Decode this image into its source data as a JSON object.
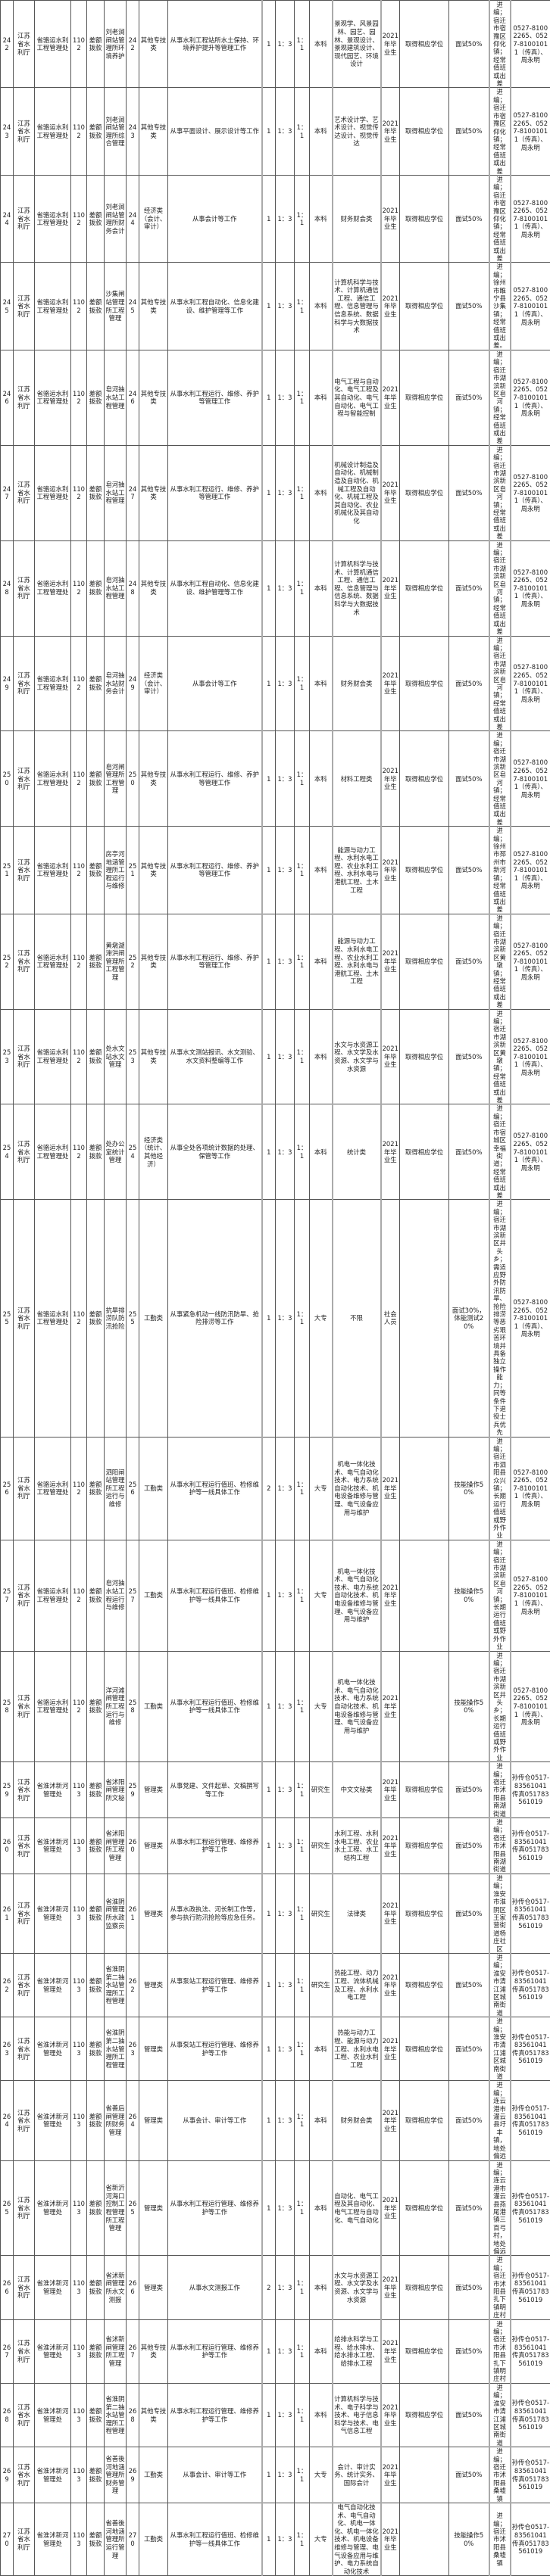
{
  "columns": [
    "no",
    "dept",
    "unit",
    "unit_code",
    "funding",
    "post_name",
    "post_code",
    "post_category",
    "description",
    "count",
    "exam_ratio",
    "hire_ratio",
    "education",
    "major",
    "target",
    "degree",
    "assessment",
    "remark",
    "contact"
  ],
  "rows": [
    [
      "242",
      "江苏省水利厅",
      "省骆运水利工程管理处",
      "1102",
      "差额拨款",
      "刘老涧闸站管理所环境养护",
      "242",
      "其他专技类",
      "从事水利工程站所水土保持、环境养护提升等管理工作",
      "1",
      "1：3",
      "1：1",
      "本科",
      "景观学、风景园林、园艺、园林、景观设计、景观建筑设计、现代园艺、环境设计",
      "2021年毕业生",
      "取得相应学位",
      "面试50%",
      "进编；宿迁市宿豫区仰化镇；经常值班或出差",
      "0527-81002265、0527-81001011（传真）、周永明"
    ],
    [
      "243",
      "江苏省水利厅",
      "省骆运水利工程管理处",
      "1102",
      "差额拨款",
      "刘老涧闸站管理所综合管理",
      "243",
      "其他专技类",
      "从事平面设计、展示设计等工作",
      "1",
      "1：3",
      "1：1",
      "本科",
      "艺术设计学、艺术设计、视觉传达设计、视觉传达",
      "2021年毕业生",
      "取得相应学位",
      "面试50%",
      "进编；宿迁市宿豫区仰化镇；经常值班或出差",
      "0527-81002265、0527-81001011（传真）、周永明"
    ],
    [
      "244",
      "江苏省水利厅",
      "省骆运水利工程管理处",
      "1102",
      "差额拨款",
      "刘老涧闸站管理所财务会计",
      "244",
      "经济类（会计、审计）",
      "从事会计等工作",
      "1",
      "1：3",
      "1：1",
      "本科",
      "财务财会类",
      "2021年毕业生",
      "取得相应学位",
      "面试50%",
      "进编；宿迁市宿豫区仰化镇；经常值班或出差",
      "0527-81002265、0527-81001011（传真）、周永明"
    ],
    [
      "245",
      "江苏省水利厅",
      "省骆运水利工程管理处",
      "1102",
      "差额拨款",
      "沙集闸站管理所工程管理",
      "245",
      "其他专技类",
      "从事水利工程自动化、信息化建设、维护管理等工作",
      "1",
      "1：3",
      "1：1",
      "本科",
      "计算机科学与技术、计算机通信工程、通信工程、信息管理与信息系统、数据科学与大数据技术",
      "2021年毕业生",
      "取得相应学位",
      "面试50%",
      "进编；徐州市睢宁县沙集镇；经常值班或出差。",
      "0527-81002265、0527-81001011（传真）、周永明"
    ],
    [
      "246",
      "江苏省水利厅",
      "省骆运水利工程管理处",
      "1102",
      "差额拨款",
      "皂河抽水站工程管理",
      "246",
      "其他专技类",
      "从事水利工程运行、维修、养护等管理工作",
      "1",
      "1：3",
      "1：1",
      "本科",
      "电气工程与自动化、电气工程及其自动化、电气自动化、电气工程与智能控制",
      "2021年毕业生",
      "取得相应学位",
      "面试50%",
      "进编；宿迁市湖滨新区皂河镇；经常值班或出差",
      "0527-81002265、0527-81001011（传真）、周永明"
    ],
    [
      "247",
      "江苏省水利厅",
      "省骆运水利工程管理处",
      "1102",
      "差额拨款",
      "皂河抽水站工程管理",
      "247",
      "其他专技类",
      "从事水利工程运行、维修、养护等管理工作",
      "1",
      "1：3",
      "1：1",
      "本科",
      "机械设计制造及自动化、机械制造及自动化、机械工程及自动化、机械工程及其自动化、农业机械化及其自动化",
      "2021年毕业生",
      "取得相应学位",
      "面试50%",
      "进编；宿迁市湖滨新区皂河镇；经常值班或出差",
      "0527-81002265、0527-81001011（传真）、周永明"
    ],
    [
      "248",
      "江苏省水利厅",
      "省骆运水利工程管理处",
      "1102",
      "差额拨款",
      "皂河抽水站工程管理",
      "248",
      "其他专技类",
      "从事水利工程自动化、信息化建设、维护管理等工作",
      "1",
      "1：3",
      "1：1",
      "本科",
      "计算机科学与技术、计算机通信工程、通信工程、信息管理与信息系统、数据科学与大数据技术",
      "2021年毕业生",
      "取得相应学位",
      "面试50%",
      "进编；宿迁市湖滨新区皂河镇；经常值班或出差",
      "0527-81002265、0527-81001011（传真）、周永明"
    ],
    [
      "249",
      "江苏省水利厅",
      "省骆运水利工程管理处",
      "1102",
      "差额拨款",
      "皂河抽水站财务会计",
      "249",
      "经济类（会计、审计）",
      "从事会计等工作",
      "1",
      "1：3",
      "1：1",
      "本科",
      "财务财会类",
      "2021年毕业生",
      "取得相应学位",
      "面试50%",
      "进编；宿迁市湖滨新区皂河镇；经常值班或出差",
      "0527-81002265、0527-81001011（传真）、周永明"
    ],
    [
      "250",
      "江苏省水利厅",
      "省骆运水利工程管理处",
      "1102",
      "差额拨款",
      "皂河闸管理所工程管理",
      "250",
      "其他专技类",
      "从事水利工程运行、维修、养护等管理工作",
      "1",
      "1：3",
      "1：1",
      "本科",
      "材料工程类",
      "2021年毕业生",
      "取得相应学位",
      "面试50%",
      "进编；宿迁市湖滨新区皂河镇；经常值班或出差",
      "0527-81002265、0527-81001011（传真）、周永明"
    ],
    [
      "251",
      "江苏省水利厅",
      "省骆运水利工程管理处",
      "1102",
      "差额拨款",
      "房亭河地涵管理所工程运行与维修",
      "251",
      "其他专技类",
      "从事水利工程运行、维修、养护等管理工作",
      "1",
      "1：3",
      "1：1",
      "本科",
      "能源与动力工程、水利水电工程、农业水利工程、水利水电与港航工程、土木工程",
      "2021年毕业生",
      "取得相应学位",
      "面试50%",
      "进编；徐州市邳州市新河镇；经常值班或出差",
      "0527-81002265、0527-81001011（传真）、周永明"
    ],
    [
      "252",
      "江苏省水利厅",
      "省骆运水利工程管理处",
      "1102",
      "差额拨款",
      "黄墩湖滞洪闸管理所工程管理",
      "252",
      "其他专技类",
      "从事水利工程运行、维修、养护等管理工作",
      "1",
      "1：3",
      "1：1",
      "本科",
      "能源与动力工程、水利水电工程、农业水利工程、水利水电与港航工程、土木工程",
      "2021年毕业生",
      "取得相应学位",
      "面试50%",
      "进编；宿迁市湖滨新区黄墩镇；经常值班或出差",
      "0527-81002265、0527-81001011（传真）、周永明"
    ],
    [
      "253",
      "江苏省水利厅",
      "省骆运水利工程管理处",
      "1102",
      "差额拨款",
      "处水文站水文管理",
      "253",
      "其他专技类",
      "从事水文测站报讯、水文测验、水文资料整编等工作",
      "1",
      "1：3",
      "1：1",
      "本科",
      "水文与水资源工程、水文学及水资源、水文学与水资源",
      "2021年毕业生",
      "取得相应学位",
      "面试50%",
      "进编；宿迁市湖滨新区黄墩镇；经常值班或出差",
      "0527-81002265、0527-81001011（传真）、周永明"
    ],
    [
      "254",
      "江苏省水利厅",
      "省骆运水利工程管理处",
      "1102",
      "差额拨款",
      "处办公室统计管理",
      "254",
      "经济类（统计、其他经济）",
      "从事全处各项统计数据的处理、保管等工作",
      "1",
      "1：3",
      "1：1",
      "本科",
      "统计类",
      "2021年毕业生",
      "取得相应学位",
      "面试50%",
      "进编；宿迁市宿城区幸福街道；经常值班或出差",
      "0527-81002265、0527-81001011（传真）、周永明"
    ],
    [
      "255",
      "江苏省水利厅",
      "省骆运水利工程管理处",
      "1102",
      "差额拨款",
      "抗旱排涝队防汛抢险",
      "255",
      "工勤类",
      "从事紧急机动一线防汛防旱、抢险排涝等工作",
      "1",
      "1：3",
      "1：1",
      "大专",
      "不限",
      "社会人员",
      "",
      "面试30%，体能测试20%",
      "进编；宿迁市湖滨新区井头乡；需适应野外防汛防旱、抢险排涝等恶劣艰苦环境并具备独立操作能力；同等条件下退役士兵优先",
      "0527-81002265、0527-81001011（传真）、周永明"
    ],
    [
      "256",
      "江苏省水利厅",
      "省骆运水利工程管理处",
      "1102",
      "差额拨款",
      "泗阳闸站管理所工程运行与维修",
      "256",
      "工勤类",
      "从事水利工程运行值班、检修维护等一线具体工作",
      "2",
      "1：3",
      "1：1",
      "大专",
      "机电一体化技术、电气自动化技术、电力系统自动化技术、机电设备维修与管理、电气设备应用与维护",
      "2021年毕业生",
      "",
      "技能操作50%",
      "进编；宿迁市泗阳县众兴镇；长期运行值班或野外作业",
      "0527-81002265、0527-81001011（传真）、周永明"
    ],
    [
      "257",
      "江苏省水利厅",
      "省骆运水利工程管理处",
      "1102",
      "差额拨款",
      "皂河抽水站工程运行与维修",
      "257",
      "工勤类",
      "从事水利工程运行值班、检修维护等一线具体工作",
      "1",
      "1：3",
      "1：1",
      "大专",
      "机电一体化技术、电气自动化技术、电力系统自动化技术、机电设备维修与管理、电气设备应用与维护",
      "2021年毕业生",
      "",
      "技能操作50%",
      "进编；宿迁市湖滨新区皂河镇；长期运行值班或野外作业",
      "0527-81002265、0527-81001011（传真）、周永明"
    ],
    [
      "258",
      "江苏省水利厅",
      "省骆运水利工程管理处",
      "1102",
      "差额拨款",
      "洋河滩闸管理所工程运行与维修",
      "258",
      "工勤类",
      "从事水利工程运行值班、检修维护等一线具体工作",
      "1",
      "1：3",
      "1：1",
      "大专",
      "机电一体化技术、电气自动化技术、电力系统自动化技术、机电设备维修与管理、电气设备应用与维护",
      "2021年毕业生",
      "",
      "技能操作50%",
      "进编；宿迁市湖滨新区井头乡；长期运行值班或野外作业",
      "0527-81002265、0527-81001011（传真）、周永明"
    ],
    [
      "259",
      "江苏省水利厅",
      "省淮沭新河管理处",
      "1103",
      "差额拨款",
      "省沭阳闸管理所文秘",
      "259",
      "管理类",
      "从事党建、文件起草、文稿撰写等工作",
      "1",
      "1：3",
      "1：1",
      "研究生",
      "中文文秘类",
      "2021年毕业生",
      "取得相应学位",
      "面试50%",
      "进编；宿迁市沭阳县南湖街道",
      "孙传仓0517-83561041传真051783561019"
    ],
    [
      "260",
      "江苏省水利厅",
      "省淮沭新河管理处",
      "1103",
      "差额拨款",
      "省沭阳闸管理所工程管理",
      "260",
      "管理类",
      "从事水利工程运行管理、维修养护等工作",
      "1",
      "1：3",
      "1：1",
      "研究生",
      "水利工程、水利水电工程、农业水土工程、水工结构工程",
      "2021年毕业生",
      "取得相应学位",
      "面试50%",
      "进编；宿迁市沭阳县南湖街道",
      "孙传仓0517-83561041传真051783561019"
    ],
    [
      "261",
      "江苏省水利厅",
      "省淮沭新河管理处",
      "1103",
      "差额拨款",
      "省淮阴闸管理所水政监察员",
      "261",
      "管理类",
      "从事水政执法、河长制工作等，参与执行防汛抢险等应急任务。",
      "1",
      "1：3",
      "1：1",
      "研究生",
      "法律类",
      "2021年毕业生",
      "取得相应学位",
      "面试50%",
      "进编；淮安市淮阴区王家营街道杨庄社区",
      "孙传仓0517-83561041传真051783561019"
    ],
    [
      "262",
      "江苏省水利厅",
      "省淮沭新河管理处",
      "1103",
      "差额拨款",
      "省淮阴第二抽水站管理所工程管理",
      "262",
      "管理类",
      "从事泵站工程运行管理、维修养护等工作",
      "1",
      "1：3",
      "1：1",
      "研究生",
      "热能工程、动力工程、流体机械及工程、水利水电工程",
      "2021年毕业生",
      "取得相应学位",
      "面试50%",
      "进编；淮安市清江浦区城南街道",
      "孙传仓0517-83561041传真051783561019"
    ],
    [
      "263",
      "江苏省水利厅",
      "省淮沭新河管理处",
      "1103",
      "差额拨款",
      "省淮阴第二抽水站管理所工程管理",
      "263",
      "管理类",
      "从事泵站工程运行管理、维修养护等工作",
      "1",
      "1：3",
      "1：1",
      "本科",
      "热能与动力工程、能源与动力工程、水利水电工程、农业水利工程",
      "2021年毕业生",
      "取得相应学位",
      "面试50%",
      "进编；淮安市清江浦区城南街道",
      "孙传仓0517-83561041传真051783561019"
    ],
    [
      "264",
      "江苏省水利厅",
      "省淮沭新河管理处",
      "1103",
      "差额拨款",
      "省善后闸管理所财务管理",
      "264",
      "管理类",
      "从事会计、审计等工作",
      "1",
      "1：3",
      "1：1",
      "本科",
      "财务财会类",
      "2021年毕业生",
      "取得相应学位",
      "面试50%",
      "进编；连云港市灌云县圩丰镇，地处偏远",
      "孙传仓0517-83561041传真051783561019"
    ],
    [
      "265",
      "江苏省水利厅",
      "省淮沭新河管理处",
      "1103",
      "差额拨款",
      "省新沂河海口控制工程管理所工程管理",
      "265",
      "管理类",
      "从事水利工程运行管理、维修养护等工作",
      "1",
      "1：3",
      "1：1",
      "本科",
      "自动化、电气工程及其自动化、电气工程与自动化、电气自动化",
      "2021年毕业生",
      "取得相应学位",
      "面试50%",
      "进编；连云港市灌云县燕尾港镇三百弓村，地处偏远",
      "孙传仓0517-83561041传真051783561019"
    ],
    [
      "266",
      "江苏省水利厅",
      "省淮沭新河管理处",
      "1103",
      "差额拨款",
      "省沭新闸管理所水文测报",
      "266",
      "管理类",
      "从事水文测报工作",
      "2",
      "1：3",
      "1：1",
      "本科",
      "水文与水资源工程、水文学及水资源、水文学与水资源",
      "2021年毕业生",
      "取得相应学位",
      "面试50%",
      "进编；宿迁市沭阳县扎下镇明庄村",
      "孙传仓0517-83561041传真051783561019"
    ],
    [
      "267",
      "江苏省水利厅",
      "省淮沭新河管理处",
      "1103",
      "差额拨款",
      "省沭新闸管理所工程管理",
      "267",
      "其他专技类",
      "从事水利工程运行管理、维修养护等工作",
      "1",
      "1：3",
      "1：1",
      "本科",
      "给排水科学与工程、给水排水、给水排水工程、给排水工程",
      "2021年毕业生",
      "取得相应学位",
      "面试50%",
      "进编；宿迁市沭阳县扎下镇明庄村",
      "孙传仓0517-83561041传真051783561019"
    ],
    [
      "268",
      "江苏省水利厅",
      "省淮沭新河管理处",
      "1103",
      "差额拨款",
      "省淮阴第二抽水站管理所工程管理",
      "268",
      "其他专技类",
      "从事水利工程运行管理、维修养护等工作",
      "1",
      "1：3",
      "1：1",
      "本科",
      "计算机科学与技术、电子科学与技术、电子信息科学与技术、电气信息工程",
      "2021年毕业生",
      "取得相应学位",
      "面试50%",
      "进编；淮安市清江浦区城南街道",
      "孙传仓0517-83561041传真051783561019"
    ],
    [
      "269",
      "江苏省水利厅",
      "省淮沭新河管理处",
      "1103",
      "差额拨款",
      "省善後河地涵管理所财务管理",
      "269",
      "工勤类",
      "从事会计、审计等工作",
      "1",
      "1：3",
      "1：1",
      "大专",
      "会计、审计实务、统计实务、国际会计",
      "2021年毕业生",
      "",
      "面试50%",
      "进编；宿迁市沭阳县桑墟镇",
      "孙传仓0517-83561041传真051783561019"
    ],
    [
      "270",
      "江苏省水利厅",
      "省淮沭新河管理处",
      "1103",
      "差额拨款",
      "省善後河地涵管理所运行管理",
      "270",
      "工勤类",
      "从事水利工程运行值班、检修维护等一线具体工作",
      "1",
      "1：3",
      "1：1",
      "大专",
      "电气自动化技术、电气自动化、机电一体化、机电一体化技术、机电设备维修与管理、电气设备应用与维护、电力系统自动化技术",
      "2021年毕业生",
      "",
      "技能操作50%",
      "进编；宿迁市沭阳县桑墟镇",
      "孙传仓0517-83561041传真051783561019"
    ]
  ]
}
